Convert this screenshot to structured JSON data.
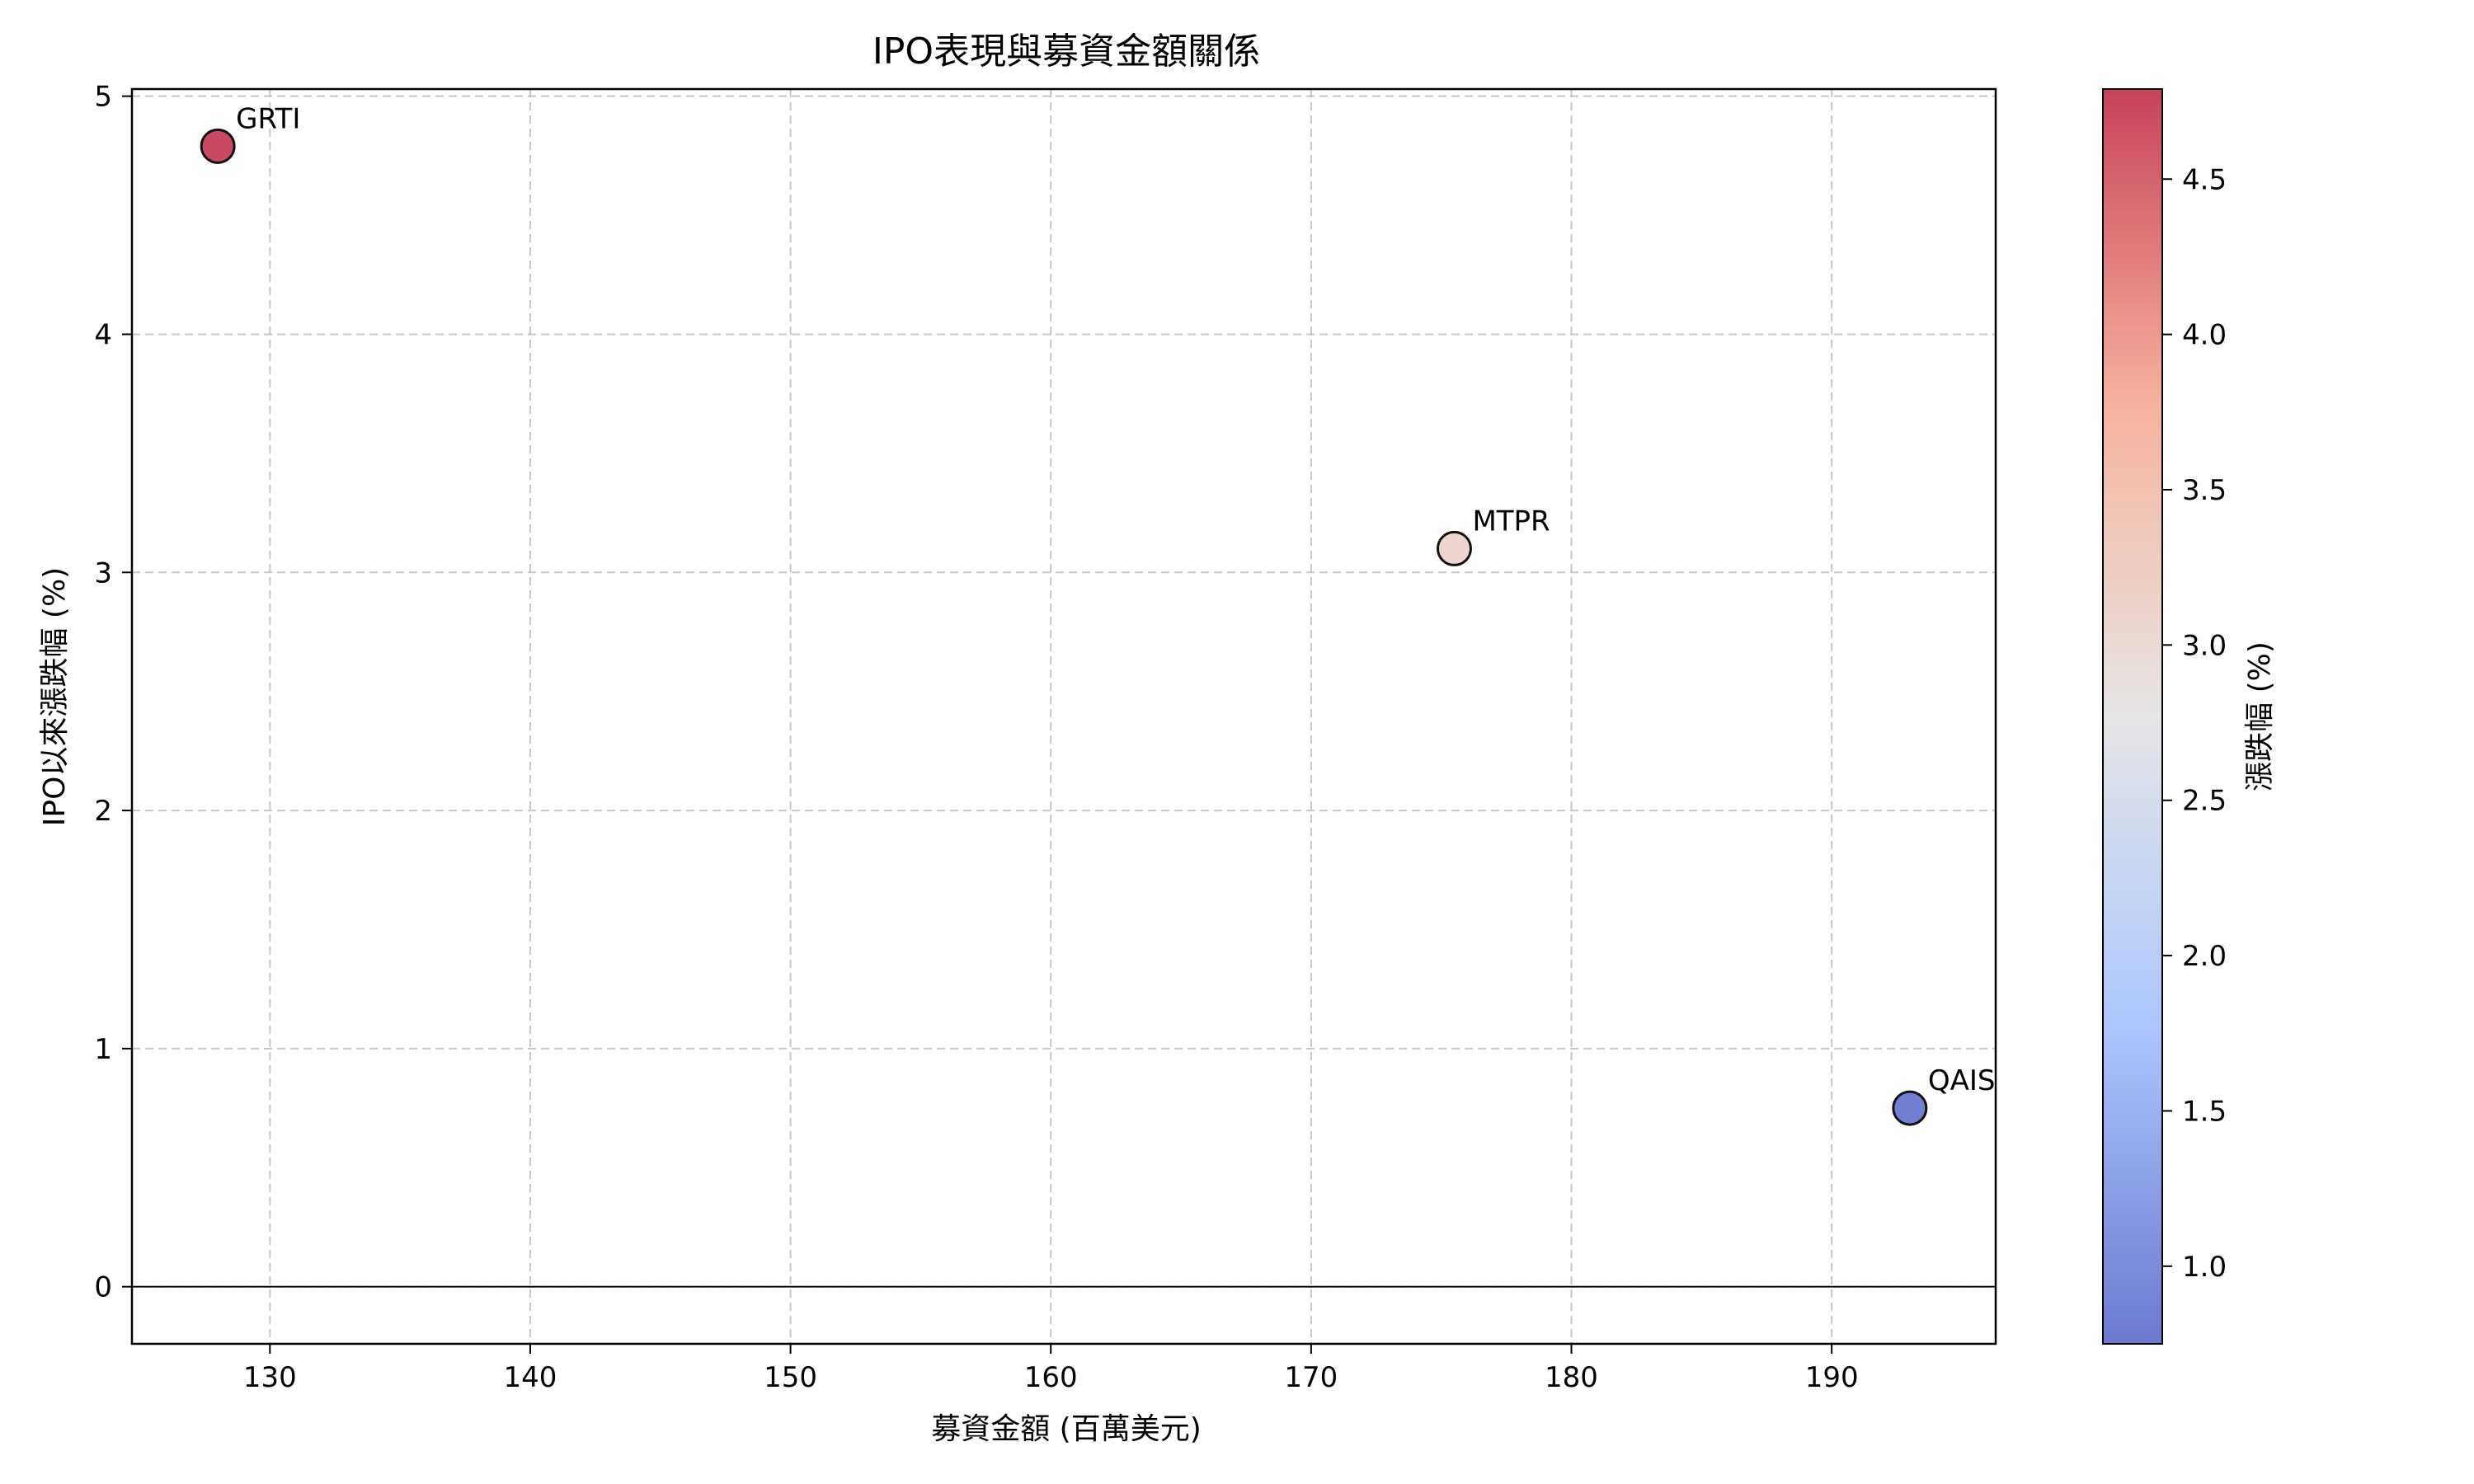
{
  "chart_data": {
    "type": "scatter",
    "title": "IPO表現與募資金額關係",
    "xlabel": "募資金額 (百萬美元)",
    "ylabel": "IPO以來漲跌幅 (%)",
    "xlim": [
      124.7,
      196.3
    ],
    "ylim": [
      -0.24,
      5.03
    ],
    "x_ticks": [
      130,
      140,
      150,
      160,
      170,
      180,
      190
    ],
    "y_ticks": [
      0,
      1,
      2,
      3,
      4,
      5
    ],
    "grid": true,
    "zero_line": true,
    "points": [
      {
        "label": "GRTI",
        "x": 128.0,
        "y": 4.79
      },
      {
        "label": "MTPR",
        "x": 175.5,
        "y": 3.1
      },
      {
        "label": "QAIS",
        "x": 193.0,
        "y": 0.75
      }
    ],
    "colorbar": {
      "label": "漲跌幅 (%)",
      "range": [
        0.75,
        4.79
      ],
      "ticks": [
        1.0,
        1.5,
        2.0,
        2.5,
        3.0,
        3.5,
        4.0,
        4.5
      ],
      "colormap": "coolwarm"
    }
  }
}
